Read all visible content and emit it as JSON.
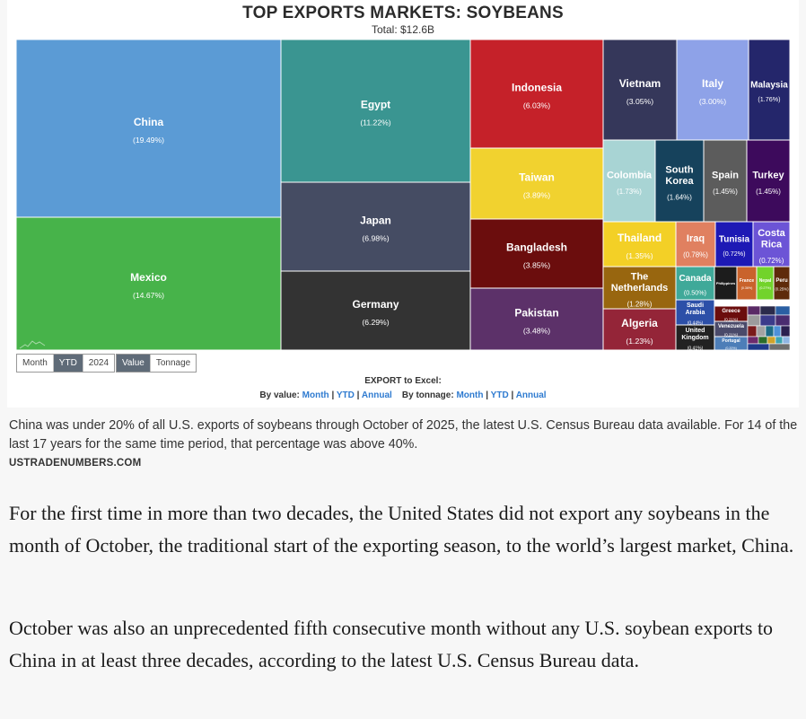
{
  "chart_data": {
    "type": "treemap",
    "title": "TOP EXPORTS MARKETS: SOYBEANS",
    "subtitle": "Total: $12.6B",
    "items": [
      {
        "name": "China",
        "pct": "(19.49%)",
        "value": 19.49,
        "color": "#5b9bd5"
      },
      {
        "name": "Mexico",
        "pct": "(14.67%)",
        "value": 14.67,
        "color": "#47b34a"
      },
      {
        "name": "Egypt",
        "pct": "(11.22%)",
        "value": 11.22,
        "color": "#3a9591"
      },
      {
        "name": "Japan",
        "pct": "(6.98%)",
        "value": 6.98,
        "color": "#454c63"
      },
      {
        "name": "Germany",
        "pct": "(6.29%)",
        "value": 6.29,
        "color": "#333333"
      },
      {
        "name": "Indonesia",
        "pct": "(6.03%)",
        "value": 6.03,
        "color": "#c52129"
      },
      {
        "name": "Taiwan",
        "pct": "(3.89%)",
        "value": 3.89,
        "color": "#f1d22f"
      },
      {
        "name": "Bangladesh",
        "pct": "(3.85%)",
        "value": 3.85,
        "color": "#6b0d0d"
      },
      {
        "name": "Pakistan",
        "pct": "(3.48%)",
        "value": 3.48,
        "color": "#5c3169"
      },
      {
        "name": "Vietnam",
        "pct": "(3.05%)",
        "value": 3.05,
        "color": "#35375a"
      },
      {
        "name": "Italy",
        "pct": "(3.00%)",
        "value": 3.0,
        "color": "#8ea2e8"
      },
      {
        "name": "Malaysia",
        "pct": "(1.76%)",
        "value": 1.76,
        "color": "#24266b"
      },
      {
        "name": "Colombia",
        "pct": "(1.73%)",
        "value": 1.73,
        "color": "#a8d4d4"
      },
      {
        "name": "South Korea",
        "pct": "(1.64%)",
        "value": 1.64,
        "color": "#16425c"
      },
      {
        "name": "Spain",
        "pct": "(1.45%)",
        "value": 1.45,
        "color": "#5c5c5c"
      },
      {
        "name": "Turkey",
        "pct": "(1.45%)",
        "value": 1.45,
        "color": "#3d0a5c"
      },
      {
        "name": "Thailand",
        "pct": "(1.35%)",
        "value": 1.35,
        "color": "#f3d026"
      },
      {
        "name": "Iraq",
        "pct": "(0.78%)",
        "value": 0.78,
        "color": "#e08060"
      },
      {
        "name": "Tunisia",
        "pct": "(0.72%)",
        "value": 0.72,
        "color": "#1d19b5"
      },
      {
        "name": "Costa Rica",
        "pct": "(0.72%)",
        "value": 0.72,
        "color": "#6c54d6"
      },
      {
        "name": "The Netherlands",
        "pct": "(1.28%)",
        "value": 1.28,
        "color": "#98660f"
      },
      {
        "name": "Canada",
        "pct": "(0.50%)",
        "value": 0.5,
        "color": "#3fa999"
      },
      {
        "name": "Philippines",
        "pct": "",
        "value": 0.3,
        "color": "#1c1c1c"
      },
      {
        "name": "France",
        "pct": "(0.36%)",
        "value": 0.36,
        "color": "#c9632c"
      },
      {
        "name": "Nepal",
        "pct": "(0.27%)",
        "value": 0.27,
        "color": "#72d32b"
      },
      {
        "name": "Peru",
        "pct": "(0.25%)",
        "value": 0.25,
        "color": "#5e2a0a"
      },
      {
        "name": "Algeria",
        "pct": "(1.23%)",
        "value": 1.23,
        "color": "#942538"
      },
      {
        "name": "Saudi Arabia",
        "pct": "(0.44%)",
        "value": 0.44,
        "color": "#2c4fa8"
      },
      {
        "name": "United Kingdom",
        "pct": "(0.41%)",
        "value": 0.41,
        "color": "#222222"
      },
      {
        "name": "Greece",
        "pct": "(0.21%)",
        "value": 0.21,
        "color": "#6b0d0d"
      },
      {
        "name": "Venezuela",
        "pct": "(0.21%)",
        "value": 0.21,
        "color": "#4a4a6a"
      },
      {
        "name": "Portugal",
        "pct": "(0.20%)",
        "value": 0.2,
        "color": "#4d7eb8"
      }
    ],
    "small_tile_colors": [
      "#5a2a66",
      "#2b2b4b",
      "#2a5fa3",
      "#9c9c9c",
      "#3b3b8b",
      "#4a2c70",
      "#7a1b1b",
      "#a3a3a3",
      "#1d6b86",
      "#4d90d8",
      "#2a1f4f",
      "#6d2b6d",
      "#2b6d2b",
      "#cfa32a",
      "#3da3b0",
      "#8fb5e3",
      "#1f3a8a",
      "#6e6e6e"
    ]
  },
  "controls": {
    "period": [
      "Month",
      "YTD",
      "2024"
    ],
    "period_active": "YTD",
    "measure": [
      "Value",
      "Tonnage"
    ],
    "measure_active": "Value"
  },
  "export": {
    "title": "EXPORT to Excel:",
    "by_value_label": "By value:",
    "by_tonnage_label": "By tonnage:",
    "links": [
      "Month",
      "YTD",
      "Annual"
    ],
    "sep": "|"
  },
  "caption": "China was under 20% of all U.S. exports of soybeans through October of 2025, the latest U.S. Census Bureau data available. For 14 of the last 17 years for the same time period, that percentage was above 40%.",
  "credit": "USTRADENUMBERS.COM",
  "paragraphs": [
    "For the first time in more than two decades, the United States did not export any soybeans in the month of October, the traditional start of the exporting season, to the world’s largest market, China.",
    "October was also an unprecedented fifth consecutive month without any U.S. soybean exports to China in at least three decades, according to the latest U.S. Census Bureau data."
  ]
}
